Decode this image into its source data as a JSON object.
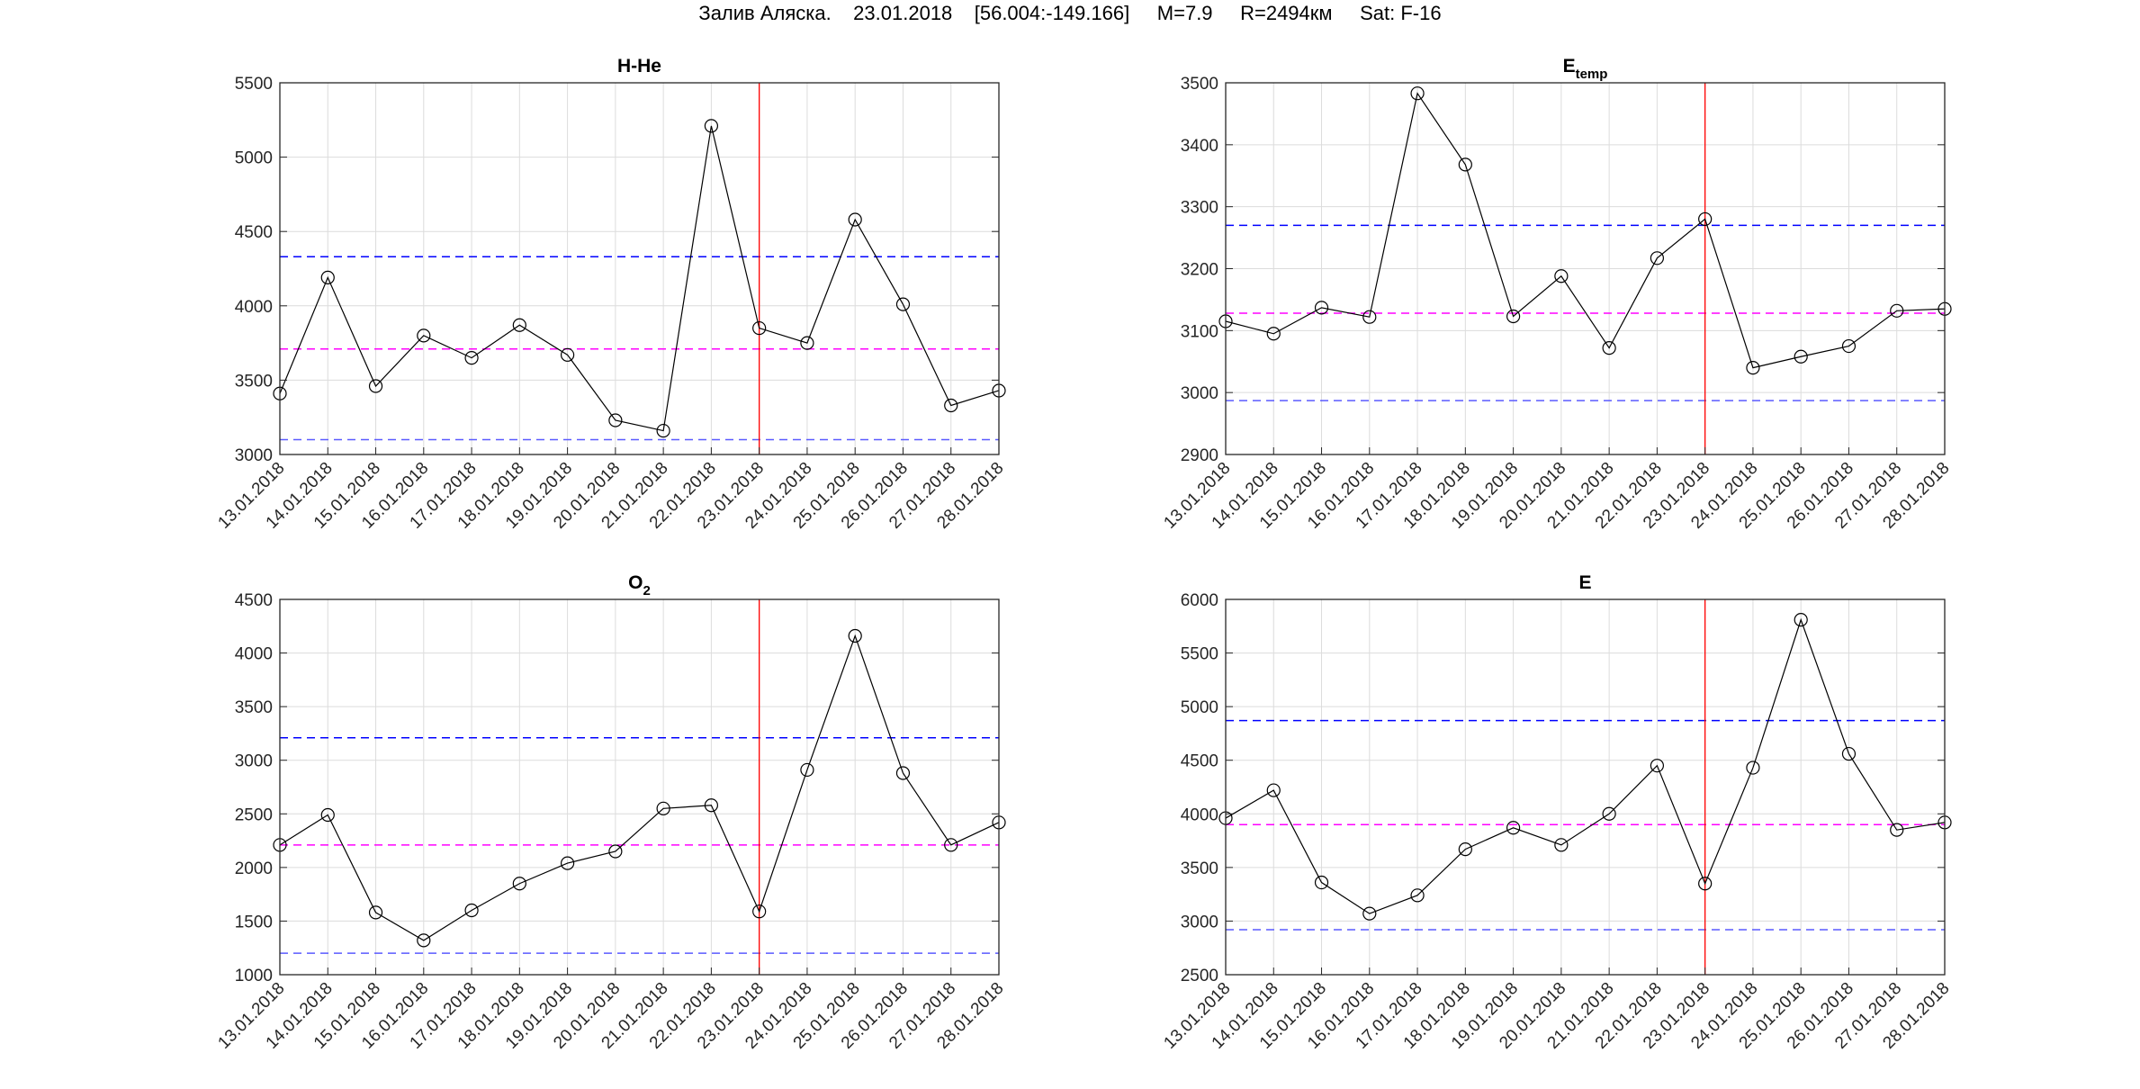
{
  "header": {
    "title": "Залив Аляска.    23.01.2018    [56.004:-149.166]     M=7.9     R=2494км     Sat: F-16"
  },
  "colors": {
    "upper": "#0000ff",
    "lower": "#5a5aff",
    "mean": "#ff00ff",
    "event": "#ff0000",
    "series": "#000000",
    "grid": "#dcdcdc"
  },
  "chart_data": [
    {
      "type": "line",
      "title": "H-He",
      "title_sub": "",
      "categories": [
        "13.01.2018",
        "14.01.2018",
        "15.01.2018",
        "16.01.2018",
        "17.01.2018",
        "18.01.2018",
        "19.01.2018",
        "20.01.2018",
        "21.01.2018",
        "22.01.2018",
        "23.01.2018",
        "24.01.2018",
        "25.01.2018",
        "26.01.2018",
        "27.01.2018",
        "28.01.2018"
      ],
      "values": [
        3410,
        4190,
        3460,
        3800,
        3650,
        3870,
        3670,
        3230,
        3160,
        5210,
        3850,
        3750,
        4580,
        4010,
        3330,
        3430
      ],
      "ylim": [
        3000,
        5500
      ],
      "yticks": [
        3000,
        3500,
        4000,
        4500,
        5000,
        5500
      ],
      "upper": 4330,
      "mean": 3710,
      "lower": 3100,
      "event_date": "23.01.2018",
      "grid": true,
      "marker": "circle"
    },
    {
      "type": "line",
      "title": "E",
      "title_sub": "temp",
      "categories": [
        "13.01.2018",
        "14.01.2018",
        "15.01.2018",
        "16.01.2018",
        "17.01.2018",
        "18.01.2018",
        "19.01.2018",
        "20.01.2018",
        "21.01.2018",
        "22.01.2018",
        "23.01.2018",
        "24.01.2018",
        "25.01.2018",
        "26.01.2018",
        "27.01.2018",
        "28.01.2018"
      ],
      "values": [
        3115,
        3095,
        3137,
        3122,
        3483,
        3368,
        3123,
        3188,
        3072,
        3217,
        3280,
        3040,
        3058,
        3075,
        3132,
        3135
      ],
      "ylim": [
        2900,
        3500
      ],
      "yticks": [
        2900,
        3000,
        3100,
        3200,
        3300,
        3400,
        3500
      ],
      "upper": 3270,
      "mean": 3128,
      "lower": 2987,
      "event_date": "23.01.2018",
      "grid": true,
      "marker": "circle"
    },
    {
      "type": "line",
      "title": "O",
      "title_sub": "2",
      "categories": [
        "13.01.2018",
        "14.01.2018",
        "15.01.2018",
        "16.01.2018",
        "17.01.2018",
        "18.01.2018",
        "19.01.2018",
        "20.01.2018",
        "21.01.2018",
        "22.01.2018",
        "23.01.2018",
        "24.01.2018",
        "25.01.2018",
        "26.01.2018",
        "27.01.2018",
        "28.01.2018"
      ],
      "values": [
        2210,
        2490,
        1580,
        1320,
        1600,
        1850,
        2040,
        2150,
        2550,
        2580,
        1590,
        2910,
        4160,
        2880,
        2210,
        2420
      ],
      "ylim": [
        1000,
        4500
      ],
      "yticks": [
        1000,
        1500,
        2000,
        2500,
        3000,
        3500,
        4000,
        4500
      ],
      "upper": 3210,
      "mean": 2210,
      "lower": 1200,
      "event_date": "23.01.2018",
      "grid": true,
      "marker": "circle"
    },
    {
      "type": "line",
      "title": "E",
      "title_sub": "",
      "categories": [
        "13.01.2018",
        "14.01.2018",
        "15.01.2018",
        "16.01.2018",
        "17.01.2018",
        "18.01.2018",
        "19.01.2018",
        "20.01.2018",
        "21.01.2018",
        "22.01.2018",
        "23.01.2018",
        "24.01.2018",
        "25.01.2018",
        "26.01.2018",
        "27.01.2018",
        "28.01.2018"
      ],
      "values": [
        3960,
        4220,
        3360,
        3070,
        3240,
        3670,
        3870,
        3710,
        4000,
        4450,
        3350,
        4430,
        5810,
        4560,
        3850,
        3920
      ],
      "ylim": [
        2500,
        6000
      ],
      "yticks": [
        2500,
        3000,
        3500,
        4000,
        4500,
        5000,
        5500,
        6000
      ],
      "upper": 4870,
      "mean": 3900,
      "lower": 2920,
      "event_date": "23.01.2018",
      "grid": true,
      "marker": "circle"
    }
  ]
}
